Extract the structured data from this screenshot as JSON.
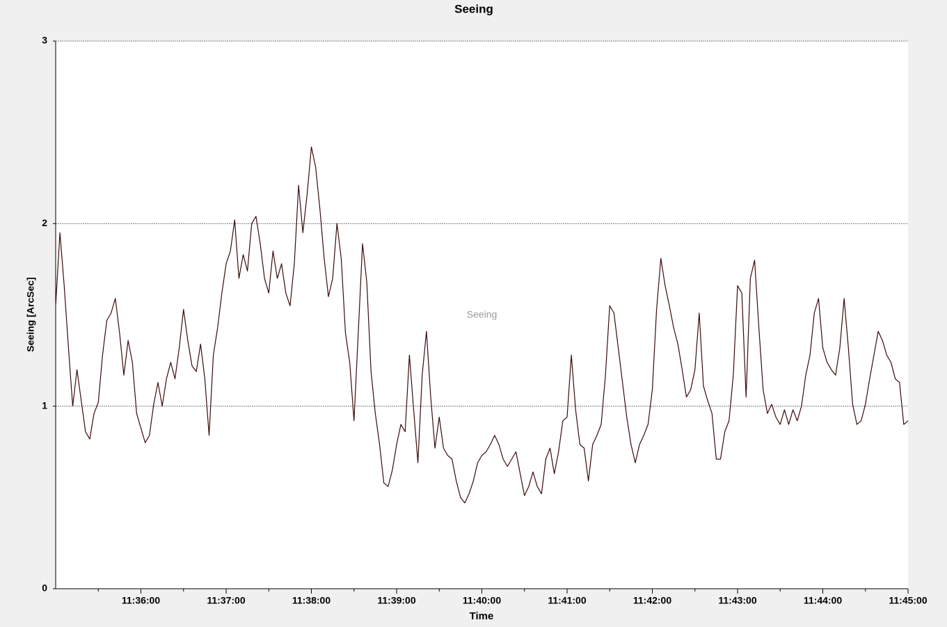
{
  "chart_data": {
    "type": "line",
    "title": "Seeing",
    "xlabel": "Time",
    "ylabel": "Seeing [ArcSec]",
    "x": [
      "11:35:00",
      "11:35:03",
      "11:35:06",
      "11:35:09",
      "11:35:12",
      "11:35:15",
      "11:35:18",
      "11:35:21",
      "11:35:24",
      "11:35:27",
      "11:35:30",
      "11:35:33",
      "11:35:36",
      "11:35:39",
      "11:35:42",
      "11:35:45",
      "11:35:48",
      "11:35:51",
      "11:35:54",
      "11:35:57",
      "11:36:00",
      "11:36:03",
      "11:36:06",
      "11:36:09",
      "11:36:12",
      "11:36:15",
      "11:36:18",
      "11:36:21",
      "11:36:24",
      "11:36:27",
      "11:36:30",
      "11:36:33",
      "11:36:36",
      "11:36:39",
      "11:36:42",
      "11:36:45",
      "11:36:48",
      "11:36:51",
      "11:36:54",
      "11:36:57",
      "11:37:00",
      "11:37:03",
      "11:37:06",
      "11:37:09",
      "11:37:12",
      "11:37:15",
      "11:37:18",
      "11:37:21",
      "11:37:24",
      "11:37:27",
      "11:37:30",
      "11:37:33",
      "11:37:36",
      "11:37:39",
      "11:37:42",
      "11:37:45",
      "11:37:48",
      "11:37:51",
      "11:37:54",
      "11:37:57",
      "11:38:00",
      "11:38:03",
      "11:38:06",
      "11:38:09",
      "11:38:12",
      "11:38:15",
      "11:38:18",
      "11:38:21",
      "11:38:24",
      "11:38:27",
      "11:38:30",
      "11:38:33",
      "11:38:36",
      "11:38:39",
      "11:38:42",
      "11:38:45",
      "11:38:48",
      "11:38:51",
      "11:38:54",
      "11:38:57",
      "11:39:00",
      "11:39:03",
      "11:39:06",
      "11:39:09",
      "11:39:12",
      "11:39:15",
      "11:39:18",
      "11:39:21",
      "11:39:24",
      "11:39:27",
      "11:39:30",
      "11:39:33",
      "11:39:36",
      "11:39:39",
      "11:39:42",
      "11:39:45",
      "11:39:48",
      "11:39:51",
      "11:39:54",
      "11:39:57",
      "11:40:00",
      "11:40:03",
      "11:40:06",
      "11:40:09",
      "11:40:12",
      "11:40:15",
      "11:40:18",
      "11:40:21",
      "11:40:24",
      "11:40:27",
      "11:40:30",
      "11:40:33",
      "11:40:36",
      "11:40:39",
      "11:40:42",
      "11:40:45",
      "11:40:48",
      "11:40:51",
      "11:40:54",
      "11:40:57",
      "11:41:00",
      "11:41:03",
      "11:41:06",
      "11:41:09",
      "11:41:12",
      "11:41:15",
      "11:41:18",
      "11:41:21",
      "11:41:24",
      "11:41:27",
      "11:41:30",
      "11:41:33",
      "11:41:36",
      "11:41:39",
      "11:41:42",
      "11:41:45",
      "11:41:48",
      "11:41:51",
      "11:41:54",
      "11:41:57",
      "11:42:00",
      "11:42:03",
      "11:42:06",
      "11:42:09",
      "11:42:12",
      "11:42:15",
      "11:42:18",
      "11:42:21",
      "11:42:24",
      "11:42:27",
      "11:42:30",
      "11:42:33",
      "11:42:36",
      "11:42:39",
      "11:42:42",
      "11:42:45",
      "11:42:48",
      "11:42:51",
      "11:42:54",
      "11:42:57",
      "11:43:00",
      "11:43:03",
      "11:43:06",
      "11:43:09",
      "11:43:12",
      "11:43:15",
      "11:43:18",
      "11:43:21",
      "11:43:24",
      "11:43:27",
      "11:43:30",
      "11:43:33",
      "11:43:36",
      "11:43:39",
      "11:43:42",
      "11:43:45",
      "11:43:48",
      "11:43:51",
      "11:43:54",
      "11:43:57",
      "11:44:00",
      "11:44:03",
      "11:44:06",
      "11:44:09",
      "11:44:12",
      "11:44:15",
      "11:44:18",
      "11:44:21",
      "11:44:24",
      "11:44:27",
      "11:44:30",
      "11:44:33",
      "11:44:36",
      "11:44:39",
      "11:44:42",
      "11:44:45",
      "11:44:48",
      "11:44:51",
      "11:44:54",
      "11:44:57",
      "11:45:00"
    ],
    "series": [
      {
        "name": "Seeing",
        "color": "#3a0a0a",
        "values": [
          1.55,
          1.95,
          1.66,
          1.32,
          1.0,
          1.2,
          1.03,
          0.86,
          0.82,
          0.96,
          1.02,
          1.28,
          1.47,
          1.51,
          1.59,
          1.4,
          1.17,
          1.36,
          1.24,
          0.96,
          0.88,
          0.8,
          0.84,
          1.01,
          1.13,
          1.0,
          1.15,
          1.24,
          1.15,
          1.32,
          1.53,
          1.36,
          1.22,
          1.19,
          1.34,
          1.15,
          0.84,
          1.28,
          1.43,
          1.62,
          1.78,
          1.85,
          2.02,
          1.7,
          1.83,
          1.74,
          2.0,
          2.04,
          1.89,
          1.7,
          1.62,
          1.85,
          1.7,
          1.78,
          1.62,
          1.55,
          1.78,
          2.21,
          1.95,
          2.16,
          2.42,
          2.31,
          2.08,
          1.81,
          1.6,
          1.7,
          2.0,
          1.81,
          1.4,
          1.24,
          0.92,
          1.4,
          1.89,
          1.68,
          1.19,
          0.96,
          0.79,
          0.58,
          0.56,
          0.65,
          0.79,
          0.9,
          0.86,
          1.28,
          0.98,
          0.69,
          1.17,
          1.41,
          1.05,
          0.77,
          0.94,
          0.77,
          0.73,
          0.71,
          0.59,
          0.5,
          0.47,
          0.52,
          0.59,
          0.69,
          0.73,
          0.75,
          0.79,
          0.84,
          0.79,
          0.71,
          0.67,
          0.71,
          0.75,
          0.63,
          0.51,
          0.56,
          0.64,
          0.56,
          0.52,
          0.71,
          0.77,
          0.63,
          0.75,
          0.92,
          0.94,
          1.28,
          0.98,
          0.79,
          0.77,
          0.59,
          0.79,
          0.84,
          0.9,
          1.17,
          1.55,
          1.51,
          1.32,
          1.13,
          0.94,
          0.79,
          0.69,
          0.79,
          0.84,
          0.9,
          1.09,
          1.53,
          1.81,
          1.66,
          1.55,
          1.43,
          1.34,
          1.2,
          1.05,
          1.09,
          1.2,
          1.51,
          1.11,
          1.03,
          0.96,
          0.71,
          0.71,
          0.86,
          0.92,
          1.17,
          1.66,
          1.62,
          1.05,
          1.7,
          1.8,
          1.43,
          1.09,
          0.96,
          1.01,
          0.94,
          0.9,
          0.98,
          0.9,
          0.98,
          0.92,
          1.0,
          1.17,
          1.28,
          1.51,
          1.59,
          1.32,
          1.24,
          1.2,
          1.17,
          1.32,
          1.59,
          1.32,
          1.01,
          0.9,
          0.92,
          1.01,
          1.15,
          1.28,
          1.41,
          1.36,
          1.28,
          1.24,
          1.15,
          1.13,
          0.9,
          0.92
        ]
      }
    ],
    "xlim": [
      "11:35:00",
      "11:45:00"
    ],
    "xticks": [
      "11:36:00",
      "11:37:00",
      "11:38:00",
      "11:39:00",
      "11:40:00",
      "11:41:00",
      "11:42:00",
      "11:43:00",
      "11:44:00",
      "11:45:00"
    ],
    "xminor_ticks": [
      "11:35:30",
      "11:36:30",
      "11:37:30",
      "11:38:30",
      "11:39:30",
      "11:40:30",
      "11:41:30",
      "11:42:30",
      "11:43:30",
      "11:44:30"
    ],
    "ylim": [
      0,
      3
    ],
    "yticks": [
      0,
      1,
      2,
      3
    ],
    "grid": true
  }
}
